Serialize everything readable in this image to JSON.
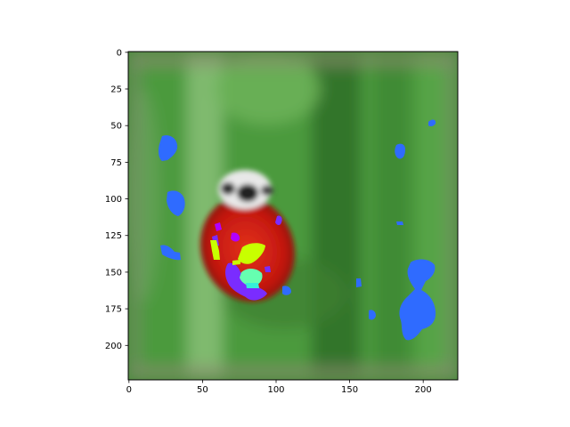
{
  "chart_data": {
    "type": "heatmap",
    "title": "",
    "xlabel": "",
    "ylabel": "",
    "xlim": [
      0,
      224
    ],
    "ylim": [
      224,
      0
    ],
    "x_ticks": [
      0,
      50,
      100,
      150,
      200
    ],
    "y_ticks": [
      0,
      25,
      50,
      75,
      100,
      125,
      150,
      175,
      200
    ],
    "x_tick_labels": [
      "0",
      "50",
      "100",
      "150",
      "200"
    ],
    "y_tick_labels": [
      "0",
      "25",
      "50",
      "75",
      "100",
      "125",
      "150",
      "175",
      "200"
    ],
    "grid": false,
    "image_content": {
      "background": "blurred green foliage",
      "background_colors": [
        "#3f8a34",
        "#5aa447",
        "#2f6e2a",
        "#8fc07a"
      ],
      "subject": "red ladybug",
      "subject_colors": [
        "#c0180f",
        "#e23a22",
        "#f4f4f4"
      ],
      "overlay_colors": [
        "#2f6bff",
        "#7a2cff",
        "#b100ff",
        "#c8ff00",
        "#66ffb0",
        "#35f0d8"
      ]
    }
  }
}
